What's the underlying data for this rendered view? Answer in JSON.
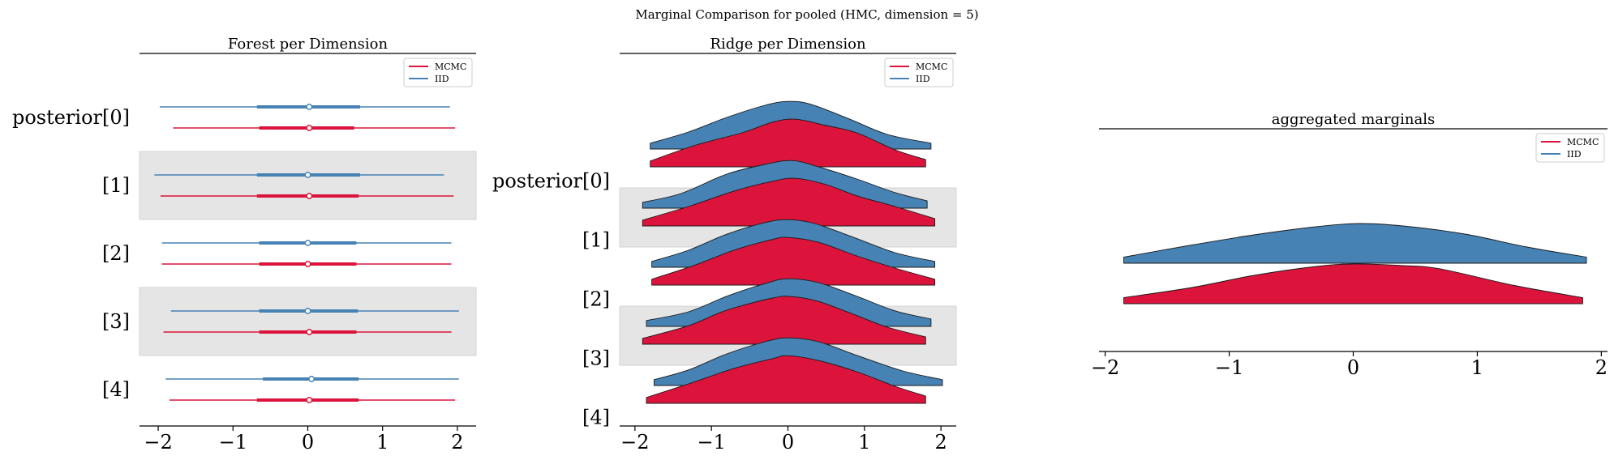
{
  "suptitle": "Marginal Comparison for pooled (HMC, dimension = 5)",
  "colors": {
    "mcmc": "#dc143c",
    "iid": "#4682b4",
    "band": "#e5e5e5"
  },
  "chart_data": [
    {
      "type": "forest",
      "title": "Forest per Dimension",
      "xlim": [
        -2.25,
        2.25
      ],
      "xticks": [
        -2,
        -1,
        0,
        1,
        2
      ],
      "xtick_labels": [
        "−2",
        "−1",
        "0",
        "1",
        "2"
      ],
      "ylabels": [
        "posterior[0]",
        "[1]",
        "[2]",
        "[3]",
        "[4]"
      ],
      "legend": {
        "placement": "top-right",
        "entries": [
          "MCMC",
          "IID"
        ]
      },
      "series": [
        {
          "name": "IID",
          "rows": [
            {
              "low": -1.98,
              "q1": -0.68,
              "median": 0.02,
              "q3": 0.7,
              "high": 1.9
            },
            {
              "low": -2.05,
              "q1": -0.68,
              "median": 0.0,
              "q3": 0.7,
              "high": 1.82
            },
            {
              "low": -1.95,
              "q1": -0.65,
              "median": 0.0,
              "q3": 0.65,
              "high": 1.92
            },
            {
              "low": -1.83,
              "q1": -0.65,
              "median": 0.0,
              "q3": 0.67,
              "high": 2.02
            },
            {
              "low": -1.9,
              "q1": -0.6,
              "median": 0.05,
              "q3": 0.68,
              "high": 2.02
            }
          ]
        },
        {
          "name": "MCMC",
          "rows": [
            {
              "low": -1.8,
              "q1": -0.65,
              "median": 0.02,
              "q3": 0.62,
              "high": 1.97
            },
            {
              "low": -1.97,
              "q1": -0.68,
              "median": 0.02,
              "q3": 0.68,
              "high": 1.95
            },
            {
              "low": -1.95,
              "q1": -0.65,
              "median": 0.0,
              "q3": 0.65,
              "high": 1.92
            },
            {
              "low": -1.93,
              "q1": -0.65,
              "median": 0.02,
              "q3": 0.65,
              "high": 1.92
            },
            {
              "low": -1.85,
              "q1": -0.68,
              "median": 0.02,
              "q3": 0.68,
              "high": 1.97
            }
          ]
        }
      ]
    },
    {
      "type": "ridge",
      "title": "Ridge per Dimension",
      "xlim": [
        -2.2,
        2.2
      ],
      "xticks": [
        -2,
        -1,
        0,
        1,
        2
      ],
      "xtick_labels": [
        "−2",
        "−1",
        "0",
        "1",
        "2"
      ],
      "ylabels": [
        "posterior[0]",
        "[1]",
        "[2]",
        "[3]",
        "[4]"
      ],
      "legend": {
        "placement": "top-right",
        "entries": [
          "MCMC",
          "IID"
        ]
      },
      "series": [
        {
          "name": "IID",
          "rows": [
            {
              "x": [
                -1.8,
                -1.3,
                -0.8,
                -0.3,
                0.0,
                0.3,
                0.8,
                1.3,
                1.87
              ],
              "density": [
                0.12,
                0.35,
                0.65,
                0.9,
                0.98,
                0.92,
                0.62,
                0.3,
                0.12
              ]
            },
            {
              "x": [
                -1.9,
                -1.4,
                -0.8,
                -0.3,
                0.05,
                0.4,
                0.9,
                1.4,
                1.82
              ],
              "density": [
                0.12,
                0.3,
                0.7,
                0.9,
                0.98,
                0.85,
                0.6,
                0.32,
                0.15
              ]
            },
            {
              "x": [
                -1.78,
                -1.3,
                -0.8,
                -0.3,
                0.0,
                0.35,
                0.85,
                1.4,
                1.92
              ],
              "density": [
                0.12,
                0.35,
                0.68,
                0.92,
                0.98,
                0.9,
                0.62,
                0.3,
                0.12
              ]
            },
            {
              "x": [
                -1.85,
                -1.3,
                -0.8,
                -0.3,
                0.0,
                0.4,
                0.9,
                1.4,
                1.87
              ],
              "density": [
                0.12,
                0.3,
                0.62,
                0.88,
                0.98,
                0.9,
                0.62,
                0.32,
                0.15
              ]
            },
            {
              "x": [
                -1.75,
                -1.3,
                -0.8,
                -0.3,
                0.0,
                0.4,
                0.9,
                1.5,
                2.02
              ],
              "density": [
                0.12,
                0.32,
                0.65,
                0.9,
                0.98,
                0.9,
                0.62,
                0.3,
                0.12
              ]
            }
          ]
        },
        {
          "name": "MCMC",
          "rows": [
            {
              "x": [
                -1.8,
                -1.2,
                -0.6,
                -0.2,
                0.1,
                0.5,
                0.9,
                1.4,
                1.8
              ],
              "density": [
                0.12,
                0.45,
                0.7,
                0.92,
                0.98,
                0.85,
                0.7,
                0.35,
                0.15
              ]
            },
            {
              "x": [
                -1.9,
                -1.3,
                -0.7,
                -0.2,
                0.1,
                0.5,
                0.9,
                1.4,
                1.92
              ],
              "density": [
                0.12,
                0.4,
                0.72,
                0.92,
                0.98,
                0.85,
                0.62,
                0.4,
                0.15
              ]
            },
            {
              "x": [
                -1.78,
                -1.2,
                -0.7,
                -0.2,
                0.0,
                0.4,
                0.9,
                1.4,
                1.92
              ],
              "density": [
                0.12,
                0.42,
                0.72,
                0.94,
                0.98,
                0.88,
                0.6,
                0.35,
                0.12
              ]
            },
            {
              "x": [
                -1.9,
                -1.3,
                -0.8,
                -0.2,
                0.05,
                0.4,
                0.85,
                1.3,
                1.8
              ],
              "density": [
                0.12,
                0.38,
                0.7,
                0.95,
                0.98,
                0.88,
                0.62,
                0.35,
                0.15
              ]
            },
            {
              "x": [
                -1.85,
                -1.3,
                -0.7,
                -0.2,
                0.0,
                0.4,
                0.9,
                1.4,
                1.8
              ],
              "density": [
                0.12,
                0.4,
                0.72,
                0.92,
                0.98,
                0.88,
                0.65,
                0.35,
                0.15
              ]
            }
          ]
        }
      ]
    },
    {
      "type": "ridge",
      "title": "aggregated marginals",
      "xlim": [
        -2.05,
        2.05
      ],
      "xticks": [
        -2,
        -1,
        0,
        1,
        2
      ],
      "xtick_labels": [
        "−2",
        "−1",
        "0",
        "1",
        "2"
      ],
      "legend": {
        "placement": "top-right",
        "entries": [
          "MCMC",
          "IID"
        ]
      },
      "series": [
        {
          "name": "IID",
          "x": [
            -1.85,
            -1.3,
            -0.8,
            -0.3,
            0.05,
            0.4,
            0.9,
            1.4,
            1.88
          ],
          "density": [
            0.15,
            0.45,
            0.7,
            0.9,
            0.98,
            0.92,
            0.72,
            0.4,
            0.15
          ]
        },
        {
          "name": "MCMC",
          "x": [
            -1.85,
            -1.3,
            -0.8,
            -0.3,
            0.0,
            0.4,
            0.7,
            1.3,
            1.85
          ],
          "density": [
            0.15,
            0.4,
            0.7,
            0.92,
            0.98,
            0.94,
            0.86,
            0.45,
            0.15
          ]
        }
      ]
    }
  ]
}
